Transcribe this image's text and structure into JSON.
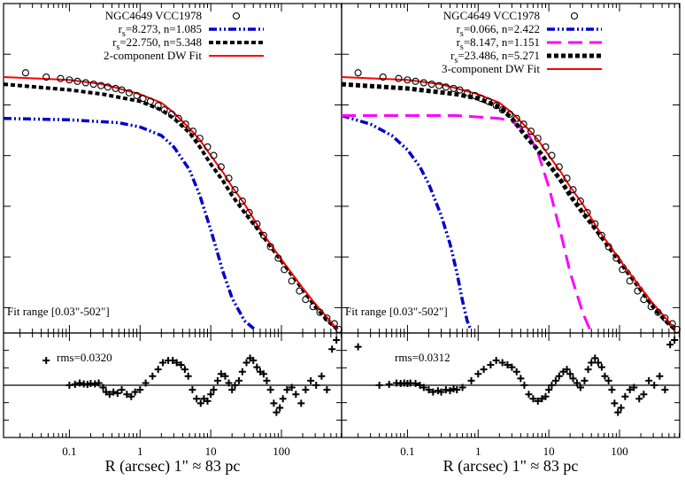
{
  "figure": {
    "xlabel": "R (arcsec)  1\" ≈  83 pc",
    "x_ticks": [
      0.1,
      1,
      10,
      100
    ],
    "x_tick_labels": [
      "0.1",
      "1",
      "10",
      "100"
    ],
    "xlim": [
      0.0117,
      710
    ],
    "x_scale": "log",
    "main_ylim": [
      0,
      1
    ],
    "resid_ylim": [
      -1,
      1
    ],
    "grid": false,
    "legend_position": "top-right",
    "colors": {
      "data": "#000000",
      "comp_blue": "#0000cc",
      "comp_magenta": "#ff00ff",
      "comp_black": "#000000",
      "fit": "#ff0000"
    }
  },
  "chart_data": [
    {
      "type": "line",
      "panel": "left",
      "legend": [
        {
          "key": "data",
          "label_pre": "NGC4649 VCC1978",
          "label_sub": "",
          "label_post": ""
        },
        {
          "key": "c1",
          "label_pre": "r",
          "label_sub": "s",
          "label_post": "=8.273, n=1.085"
        },
        {
          "key": "c2",
          "label_pre": "r",
          "label_sub": "s",
          "label_post": "=22.750, n=5.348"
        },
        {
          "key": "fit",
          "label_pre": "2-component DW Fit",
          "label_sub": "",
          "label_post": ""
        }
      ],
      "fit_range_label": "Fit range [0.03\"-502\"]",
      "rms_label": "rms=0.0320",
      "data_points": [
        [
          0.024,
          0.9
        ],
        [
          0.047,
          0.885
        ],
        [
          0.075,
          0.88
        ],
        [
          0.1,
          0.875
        ],
        [
          0.13,
          0.87
        ],
        [
          0.17,
          0.865
        ],
        [
          0.22,
          0.86
        ],
        [
          0.28,
          0.855
        ],
        [
          0.35,
          0.85
        ],
        [
          0.45,
          0.845
        ],
        [
          0.55,
          0.84
        ],
        [
          0.7,
          0.83
        ],
        [
          0.9,
          0.82
        ],
        [
          1.1,
          0.81
        ],
        [
          1.4,
          0.8
        ],
        [
          1.8,
          0.785
        ],
        [
          2.2,
          0.77
        ],
        [
          2.8,
          0.755
        ],
        [
          3.5,
          0.74
        ],
        [
          4.4,
          0.72
        ],
        [
          5.6,
          0.695
        ],
        [
          7,
          0.67
        ],
        [
          9,
          0.64
        ],
        [
          11,
          0.61
        ],
        [
          14,
          0.57
        ],
        [
          18,
          0.53
        ],
        [
          22,
          0.49
        ],
        [
          28,
          0.45
        ],
        [
          35,
          0.41
        ],
        [
          45,
          0.37
        ],
        [
          56,
          0.33
        ],
        [
          70,
          0.29
        ],
        [
          90,
          0.25
        ],
        [
          110,
          0.21
        ],
        [
          140,
          0.17
        ],
        [
          180,
          0.135
        ],
        [
          220,
          0.105
        ],
        [
          280,
          0.08
        ],
        [
          350,
          0.06
        ],
        [
          440,
          0.04
        ],
        [
          560,
          0.02
        ],
        [
          650,
          0.0
        ]
      ],
      "component_1": [
        [
          0.0117,
          0.74
        ],
        [
          0.1,
          0.735
        ],
        [
          0.5,
          0.725
        ],
        [
          1,
          0.71
        ],
        [
          2,
          0.68
        ],
        [
          3,
          0.64
        ],
        [
          5,
          0.56
        ],
        [
          7,
          0.47
        ],
        [
          10,
          0.35
        ],
        [
          15,
          0.2
        ],
        [
          20,
          0.11
        ],
        [
          30,
          0.03
        ],
        [
          42,
          0.0
        ]
      ],
      "component_2": [
        [
          0.0117,
          0.86
        ],
        [
          0.1,
          0.84
        ],
        [
          0.3,
          0.825
        ],
        [
          1,
          0.8
        ],
        [
          2,
          0.77
        ],
        [
          3,
          0.74
        ],
        [
          5,
          0.69
        ],
        [
          7,
          0.64
        ],
        [
          10,
          0.58
        ],
        [
          15,
          0.52
        ],
        [
          20,
          0.47
        ],
        [
          30,
          0.41
        ],
        [
          50,
          0.34
        ],
        [
          100,
          0.24
        ],
        [
          200,
          0.14
        ],
        [
          300,
          0.08
        ],
        [
          450,
          0.03
        ],
        [
          620,
          0.0
        ]
      ],
      "fit_curve": [
        [
          0.0117,
          0.885
        ],
        [
          0.1,
          0.875
        ],
        [
          0.3,
          0.86
        ],
        [
          1,
          0.825
        ],
        [
          2,
          0.795
        ],
        [
          3,
          0.76
        ],
        [
          5,
          0.705
        ],
        [
          7,
          0.665
        ],
        [
          10,
          0.61
        ],
        [
          15,
          0.55
        ],
        [
          20,
          0.5
        ],
        [
          30,
          0.44
        ],
        [
          50,
          0.35
        ],
        [
          100,
          0.245
        ],
        [
          200,
          0.145
        ],
        [
          300,
          0.09
        ],
        [
          450,
          0.04
        ],
        [
          620,
          0.0
        ]
      ],
      "residuals": [
        [
          0.047,
          0.55
        ],
        [
          0.1,
          0.0
        ],
        [
          0.12,
          0.02
        ],
        [
          0.14,
          0.05
        ],
        [
          0.16,
          0.03
        ],
        [
          0.18,
          0.02
        ],
        [
          0.2,
          0.04
        ],
        [
          0.23,
          0.03
        ],
        [
          0.26,
          0.05
        ],
        [
          0.3,
          -0.05
        ],
        [
          0.33,
          -0.15
        ],
        [
          0.37,
          -0.2
        ],
        [
          0.42,
          -0.15
        ],
        [
          0.48,
          -0.18
        ],
        [
          0.55,
          -0.1
        ],
        [
          0.65,
          -0.2
        ],
        [
          0.75,
          -0.25
        ],
        [
          0.85,
          -0.15
        ],
        [
          1.0,
          -0.1
        ],
        [
          1.2,
          0.05
        ],
        [
          1.5,
          0.2
        ],
        [
          1.8,
          0.35
        ],
        [
          2.1,
          0.5
        ],
        [
          2.5,
          0.55
        ],
        [
          2.9,
          0.55
        ],
        [
          3.3,
          0.5
        ],
        [
          3.8,
          0.45
        ],
        [
          4.3,
          0.35
        ],
        [
          4.8,
          0.2
        ],
        [
          5.5,
          -0.1
        ],
        [
          6.3,
          -0.3
        ],
        [
          7.2,
          -0.4
        ],
        [
          8,
          -0.3
        ],
        [
          9,
          -0.35
        ],
        [
          10,
          -0.2
        ],
        [
          11,
          -0.1
        ],
        [
          12.5,
          0.1
        ],
        [
          14,
          0.25
        ],
        [
          16,
          0.2
        ],
        [
          18,
          0.05
        ],
        [
          20,
          -0.1
        ],
        [
          22,
          0.0
        ],
        [
          25,
          0.1
        ],
        [
          28,
          0.3
        ],
        [
          32,
          0.5
        ],
        [
          36,
          0.6
        ],
        [
          40,
          0.55
        ],
        [
          45,
          0.4
        ],
        [
          50,
          0.3
        ],
        [
          56,
          0.25
        ],
        [
          62,
          0.1
        ],
        [
          70,
          -0.1
        ],
        [
          78,
          -0.4
        ],
        [
          85,
          -0.6
        ],
        [
          95,
          -0.5
        ],
        [
          105,
          -0.3
        ],
        [
          120,
          -0.1
        ],
        [
          140,
          -0.05
        ],
        [
          160,
          -0.2
        ],
        [
          190,
          -0.4
        ],
        [
          220,
          -0.1
        ],
        [
          260,
          0.1
        ],
        [
          310,
          0.0
        ],
        [
          370,
          0.2
        ],
        [
          440,
          -0.1
        ],
        [
          520,
          0.8
        ],
        [
          600,
          1.0
        ]
      ]
    },
    {
      "type": "line",
      "panel": "right",
      "legend": [
        {
          "key": "data",
          "label_pre": "NGC4649 VCC1978",
          "label_sub": "",
          "label_post": ""
        },
        {
          "key": "c1",
          "label_pre": "r",
          "label_sub": "s",
          "label_post": "=0.066, n=2.422"
        },
        {
          "key": "c2",
          "label_pre": "r",
          "label_sub": "s",
          "label_post": "=8.147, n=1.151"
        },
        {
          "key": "c3",
          "label_pre": "r",
          "label_sub": "s",
          "label_post": "=23.486, n=5.271"
        },
        {
          "key": "fit",
          "label_pre": "3-component DW Fit",
          "label_sub": "",
          "label_post": ""
        }
      ],
      "fit_range_label": "Fit range [0.03\"-502\"]",
      "rms_label": "rms=0.0312",
      "data_points": [
        [
          0.02,
          0.9
        ],
        [
          0.045,
          0.885
        ],
        [
          0.075,
          0.88
        ],
        [
          0.1,
          0.875
        ],
        [
          0.13,
          0.87
        ],
        [
          0.17,
          0.865
        ],
        [
          0.22,
          0.86
        ],
        [
          0.28,
          0.855
        ],
        [
          0.35,
          0.85
        ],
        [
          0.45,
          0.845
        ],
        [
          0.55,
          0.84
        ],
        [
          0.7,
          0.83
        ],
        [
          0.9,
          0.82
        ],
        [
          1.1,
          0.81
        ],
        [
          1.4,
          0.8
        ],
        [
          1.8,
          0.785
        ],
        [
          2.2,
          0.77
        ],
        [
          2.8,
          0.755
        ],
        [
          3.5,
          0.74
        ],
        [
          4.4,
          0.72
        ],
        [
          5.6,
          0.695
        ],
        [
          7,
          0.67
        ],
        [
          9,
          0.64
        ],
        [
          11,
          0.61
        ],
        [
          14,
          0.57
        ],
        [
          18,
          0.53
        ],
        [
          22,
          0.49
        ],
        [
          28,
          0.45
        ],
        [
          35,
          0.41
        ],
        [
          45,
          0.37
        ],
        [
          56,
          0.33
        ],
        [
          70,
          0.29
        ],
        [
          90,
          0.25
        ],
        [
          110,
          0.21
        ],
        [
          140,
          0.17
        ],
        [
          180,
          0.135
        ],
        [
          220,
          0.105
        ],
        [
          280,
          0.08
        ],
        [
          350,
          0.06
        ],
        [
          440,
          0.04
        ],
        [
          560,
          0.02
        ],
        [
          650,
          0.0
        ]
      ],
      "component_1": [
        [
          0.0117,
          0.75
        ],
        [
          0.03,
          0.72
        ],
        [
          0.06,
          0.68
        ],
        [
          0.1,
          0.63
        ],
        [
          0.15,
          0.57
        ],
        [
          0.2,
          0.51
        ],
        [
          0.3,
          0.4
        ],
        [
          0.4,
          0.3
        ],
        [
          0.5,
          0.2
        ],
        [
          0.6,
          0.1
        ],
        [
          0.7,
          0.03
        ],
        [
          0.78,
          0.0
        ]
      ],
      "component_2": [
        [
          0.0117,
          0.75
        ],
        [
          0.5,
          0.75
        ],
        [
          1,
          0.745
        ],
        [
          2,
          0.74
        ],
        [
          3,
          0.73
        ],
        [
          5,
          0.69
        ],
        [
          7,
          0.62
        ],
        [
          10,
          0.5
        ],
        [
          15,
          0.33
        ],
        [
          20,
          0.2
        ],
        [
          30,
          0.06
        ],
        [
          38,
          0.0
        ]
      ],
      "component_3": [
        [
          0.0117,
          0.86
        ],
        [
          0.1,
          0.845
        ],
        [
          0.5,
          0.825
        ],
        [
          1,
          0.81
        ],
        [
          2,
          0.78
        ],
        [
          3,
          0.74
        ],
        [
          5,
          0.67
        ],
        [
          7,
          0.63
        ],
        [
          10,
          0.58
        ],
        [
          15,
          0.52
        ],
        [
          20,
          0.47
        ],
        [
          30,
          0.41
        ],
        [
          50,
          0.34
        ],
        [
          100,
          0.24
        ],
        [
          200,
          0.14
        ],
        [
          300,
          0.08
        ],
        [
          450,
          0.03
        ],
        [
          620,
          0.0
        ]
      ],
      "fit_curve": [
        [
          0.0117,
          0.885
        ],
        [
          0.1,
          0.875
        ],
        [
          0.3,
          0.86
        ],
        [
          1,
          0.825
        ],
        [
          2,
          0.795
        ],
        [
          3,
          0.76
        ],
        [
          5,
          0.705
        ],
        [
          7,
          0.665
        ],
        [
          10,
          0.61
        ],
        [
          15,
          0.55
        ],
        [
          20,
          0.5
        ],
        [
          30,
          0.44
        ],
        [
          50,
          0.35
        ],
        [
          100,
          0.245
        ],
        [
          200,
          0.145
        ],
        [
          300,
          0.09
        ],
        [
          450,
          0.04
        ],
        [
          620,
          0.0
        ]
      ],
      "residuals": [
        [
          0.02,
          0.85
        ],
        [
          0.04,
          0.0
        ],
        [
          0.055,
          0.02
        ],
        [
          0.07,
          0.05
        ],
        [
          0.08,
          0.04
        ],
        [
          0.09,
          0.05
        ],
        [
          0.1,
          0.04
        ],
        [
          0.11,
          0.05
        ],
        [
          0.13,
          0.04
        ],
        [
          0.15,
          0.0
        ],
        [
          0.17,
          -0.05
        ],
        [
          0.2,
          -0.1
        ],
        [
          0.23,
          -0.15
        ],
        [
          0.27,
          -0.12
        ],
        [
          0.3,
          -0.15
        ],
        [
          0.35,
          -0.1
        ],
        [
          0.4,
          -0.12
        ],
        [
          0.45,
          -0.08
        ],
        [
          0.5,
          -0.1
        ],
        [
          0.6,
          -0.05
        ],
        [
          0.8,
          0.1
        ],
        [
          1.0,
          0.25
        ],
        [
          1.2,
          0.35
        ],
        [
          1.5,
          0.45
        ],
        [
          1.8,
          0.55
        ],
        [
          2.2,
          0.5
        ],
        [
          2.6,
          0.45
        ],
        [
          3.0,
          0.4
        ],
        [
          3.5,
          0.3
        ],
        [
          4.0,
          0.15
        ],
        [
          4.5,
          0.0
        ],
        [
          5.2,
          -0.2
        ],
        [
          6,
          -0.3
        ],
        [
          7,
          -0.35
        ],
        [
          8,
          -0.3
        ],
        [
          9,
          -0.25
        ],
        [
          10,
          -0.1
        ],
        [
          11,
          0.0
        ],
        [
          12.5,
          0.1
        ],
        [
          14,
          0.2
        ],
        [
          16,
          0.3
        ],
        [
          18,
          0.35
        ],
        [
          20,
          0.25
        ],
        [
          22,
          0.15
        ],
        [
          25,
          0.05
        ],
        [
          28,
          -0.05
        ],
        [
          32,
          0.1
        ],
        [
          36,
          0.35
        ],
        [
          40,
          0.5
        ],
        [
          45,
          0.6
        ],
        [
          50,
          0.5
        ],
        [
          56,
          0.4
        ],
        [
          62,
          0.2
        ],
        [
          70,
          0.1
        ],
        [
          78,
          -0.1
        ],
        [
          85,
          -0.4
        ],
        [
          95,
          -0.6
        ],
        [
          105,
          -0.5
        ],
        [
          120,
          -0.25
        ],
        [
          140,
          -0.1
        ],
        [
          160,
          -0.05
        ],
        [
          190,
          -0.3
        ],
        [
          220,
          -0.2
        ],
        [
          260,
          0.1
        ],
        [
          310,
          0.0
        ],
        [
          370,
          0.2
        ],
        [
          440,
          -0.1
        ],
        [
          520,
          0.9
        ],
        [
          600,
          1.0
        ]
      ]
    }
  ]
}
